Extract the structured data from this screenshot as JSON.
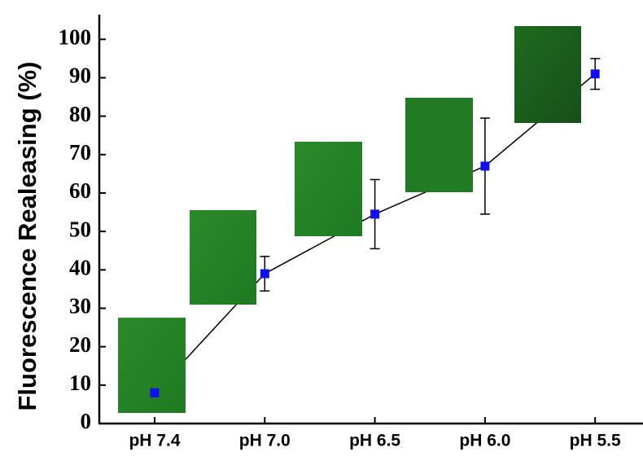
{
  "chart_data": {
    "type": "line",
    "ylabel": "Fluorescence Realeasing (%)",
    "categories": [
      "pH 7.4",
      "pH 7.0",
      "pH 6.5",
      "pH 6.0",
      "pH 5.5"
    ],
    "series": [
      {
        "values": [
          8,
          39,
          54.5,
          67,
          91
        ],
        "errors": [
          null,
          4.5,
          9,
          12.5,
          4
        ],
        "color": "#1010ee"
      }
    ],
    "ylim": [
      0,
      106
    ],
    "yticks": [
      0,
      10,
      20,
      30,
      40,
      50,
      60,
      70,
      80,
      90,
      100
    ]
  }
}
